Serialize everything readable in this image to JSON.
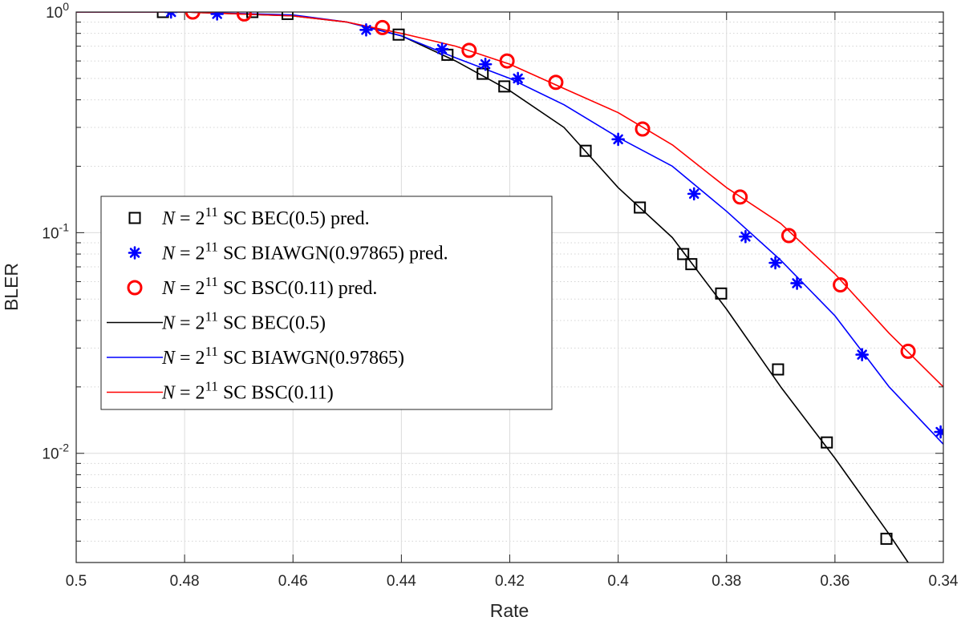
{
  "chart_data": {
    "type": "line",
    "title": "",
    "xlabel": "Rate",
    "ylabel": "BLER",
    "xlim": [
      0.5,
      0.34
    ],
    "x_reversed": true,
    "yscale": "log",
    "ylim": [
      0.0032,
      1.0
    ],
    "grid": true,
    "legend_position": "center-left",
    "x_ticks": [
      0.5,
      0.48,
      0.46,
      0.44,
      0.42,
      0.4,
      0.38,
      0.36,
      0.34
    ],
    "x_tick_labels": [
      "0.5",
      "0.48",
      "0.46",
      "0.44",
      "0.42",
      "0.4",
      "0.38",
      "0.36",
      "0.34"
    ],
    "y_ticks": [
      {
        "value": 1.0,
        "base": "10",
        "exp": "0"
      },
      {
        "value": 0.1,
        "base": "10",
        "exp": "-1"
      },
      {
        "value": 0.01,
        "base": "10",
        "exp": "-2"
      }
    ],
    "series": [
      {
        "name": "N = 2^11 SC BEC(0.5) pred.",
        "kind": "markers",
        "marker": "square",
        "color": "#000000",
        "legend": {
          "n": "N",
          "eq": " = 2",
          "exp": "11",
          "rest": " SC BEC(0.5) pred."
        },
        "points": [
          [
            0.484,
            1.0
          ],
          [
            0.4675,
            1.0
          ],
          [
            0.461,
            0.98
          ],
          [
            0.4405,
            0.79
          ],
          [
            0.4315,
            0.64
          ],
          [
            0.425,
            0.525
          ],
          [
            0.421,
            0.46
          ],
          [
            0.406,
            0.235
          ],
          [
            0.396,
            0.13
          ],
          [
            0.388,
            0.08
          ],
          [
            0.3865,
            0.072
          ],
          [
            0.381,
            0.053
          ],
          [
            0.3705,
            0.024
          ],
          [
            0.3615,
            0.0112
          ],
          [
            0.3505,
            0.0041
          ]
        ]
      },
      {
        "name": "N = 2^11 SC BIAWGN(0.97865) pred.",
        "kind": "markers",
        "marker": "asterisk",
        "color": "#0000ff",
        "legend": {
          "n": "N",
          "eq": " = 2",
          "exp": "11",
          "rest": " SC BIAWGN(0.97865) pred."
        },
        "points": [
          [
            0.4825,
            1.0
          ],
          [
            0.474,
            0.98
          ],
          [
            0.4465,
            0.83
          ],
          [
            0.4325,
            0.68
          ],
          [
            0.4245,
            0.58
          ],
          [
            0.4185,
            0.5
          ],
          [
            0.4,
            0.265
          ],
          [
            0.386,
            0.15
          ],
          [
            0.3765,
            0.096
          ],
          [
            0.371,
            0.073
          ],
          [
            0.367,
            0.059
          ],
          [
            0.355,
            0.028
          ],
          [
            0.3405,
            0.0125
          ]
        ]
      },
      {
        "name": "N = 2^11 SC BSC(0.11) pred.",
        "kind": "markers",
        "marker": "circle",
        "color": "#ff0000",
        "legend": {
          "n": "N",
          "eq": " = 2",
          "exp": "11",
          "rest": " SC BSC(0.11) pred."
        },
        "points": [
          [
            0.4785,
            1.0
          ],
          [
            0.469,
            0.98
          ],
          [
            0.4435,
            0.85
          ],
          [
            0.4275,
            0.67
          ],
          [
            0.4205,
            0.6
          ],
          [
            0.4115,
            0.48
          ],
          [
            0.3955,
            0.295
          ],
          [
            0.3775,
            0.145
          ],
          [
            0.3685,
            0.097
          ],
          [
            0.359,
            0.058
          ],
          [
            0.3465,
            0.029
          ]
        ]
      },
      {
        "name": "N = 2^11 SC BEC(0.5)",
        "kind": "line",
        "color": "#000000",
        "legend": {
          "n": "N",
          "eq": " = 2",
          "exp": "11",
          "rest": " SC BEC(0.5)"
        },
        "points": [
          [
            0.5,
            1.0
          ],
          [
            0.48,
            1.0
          ],
          [
            0.46,
            0.96
          ],
          [
            0.45,
            0.9
          ],
          [
            0.44,
            0.78
          ],
          [
            0.43,
            0.6
          ],
          [
            0.42,
            0.44
          ],
          [
            0.41,
            0.3
          ],
          [
            0.4,
            0.16
          ],
          [
            0.39,
            0.095
          ],
          [
            0.38,
            0.045
          ],
          [
            0.37,
            0.02
          ],
          [
            0.36,
            0.0095
          ],
          [
            0.35,
            0.0043
          ],
          [
            0.3465,
            0.0032
          ]
        ]
      },
      {
        "name": "N = 2^11 SC BIAWGN(0.97865)",
        "kind": "line",
        "color": "#0000ff",
        "legend": {
          "n": "N",
          "eq": " = 2",
          "exp": "11",
          "rest": " SC BIAWGN(0.97865)"
        },
        "points": [
          [
            0.5,
            1.0
          ],
          [
            0.48,
            1.0
          ],
          [
            0.46,
            0.97
          ],
          [
            0.45,
            0.9
          ],
          [
            0.44,
            0.78
          ],
          [
            0.43,
            0.62
          ],
          [
            0.42,
            0.5
          ],
          [
            0.41,
            0.38
          ],
          [
            0.4,
            0.27
          ],
          [
            0.39,
            0.2
          ],
          [
            0.38,
            0.125
          ],
          [
            0.37,
            0.075
          ],
          [
            0.36,
            0.042
          ],
          [
            0.35,
            0.02
          ],
          [
            0.34,
            0.011
          ]
        ]
      },
      {
        "name": "N = 2^11 SC BSC(0.11)",
        "kind": "line",
        "color": "#ff0000",
        "legend": {
          "n": "N",
          "eq": " = 2",
          "exp": "11",
          "rest": " SC BSC(0.11)"
        },
        "points": [
          [
            0.5,
            1.0
          ],
          [
            0.48,
            1.0
          ],
          [
            0.46,
            0.96
          ],
          [
            0.45,
            0.9
          ],
          [
            0.44,
            0.8
          ],
          [
            0.43,
            0.7
          ],
          [
            0.42,
            0.58
          ],
          [
            0.41,
            0.45
          ],
          [
            0.4,
            0.35
          ],
          [
            0.39,
            0.25
          ],
          [
            0.38,
            0.16
          ],
          [
            0.37,
            0.11
          ],
          [
            0.36,
            0.065
          ],
          [
            0.35,
            0.035
          ],
          [
            0.34,
            0.02
          ]
        ]
      }
    ]
  }
}
